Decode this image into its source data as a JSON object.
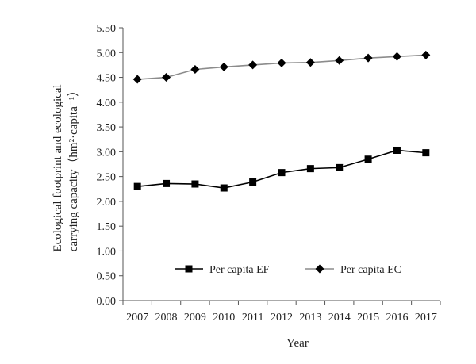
{
  "chart_data": {
    "type": "line",
    "xlabel": "Year",
    "ylabel_line1": "Ecological footprint and ecological",
    "ylabel_line2": "carrying capacity（hm²·capita⁻¹）",
    "ylim": [
      0,
      5.5
    ],
    "ytick_step": 0.5,
    "yticks": [
      "0.00",
      "0.50",
      "1.00",
      "1.50",
      "2.00",
      "2.50",
      "3.00",
      "3.50",
      "4.00",
      "4.50",
      "5.00",
      "5.50"
    ],
    "categories": [
      "2007",
      "2008",
      "2009",
      "2010",
      "2011",
      "2012",
      "2013",
      "2014",
      "2015",
      "2016",
      "2017"
    ],
    "series": [
      {
        "name": "Per capita EF",
        "marker": "square",
        "values": [
          2.3,
          2.36,
          2.35,
          2.27,
          2.39,
          2.58,
          2.66,
          2.68,
          2.85,
          3.03,
          2.98
        ]
      },
      {
        "name": "Per capita EC",
        "marker": "diamond",
        "values": [
          4.46,
          4.5,
          4.66,
          4.71,
          4.75,
          4.79,
          4.8,
          4.84,
          4.89,
          4.92,
          4.95
        ]
      }
    ],
    "legend_position": "lower-right",
    "grid": false,
    "colors": {
      "EF_line": "#000000",
      "EC_line": "#8c8c8c",
      "marker": "#000000",
      "axis": "#555555"
    }
  }
}
